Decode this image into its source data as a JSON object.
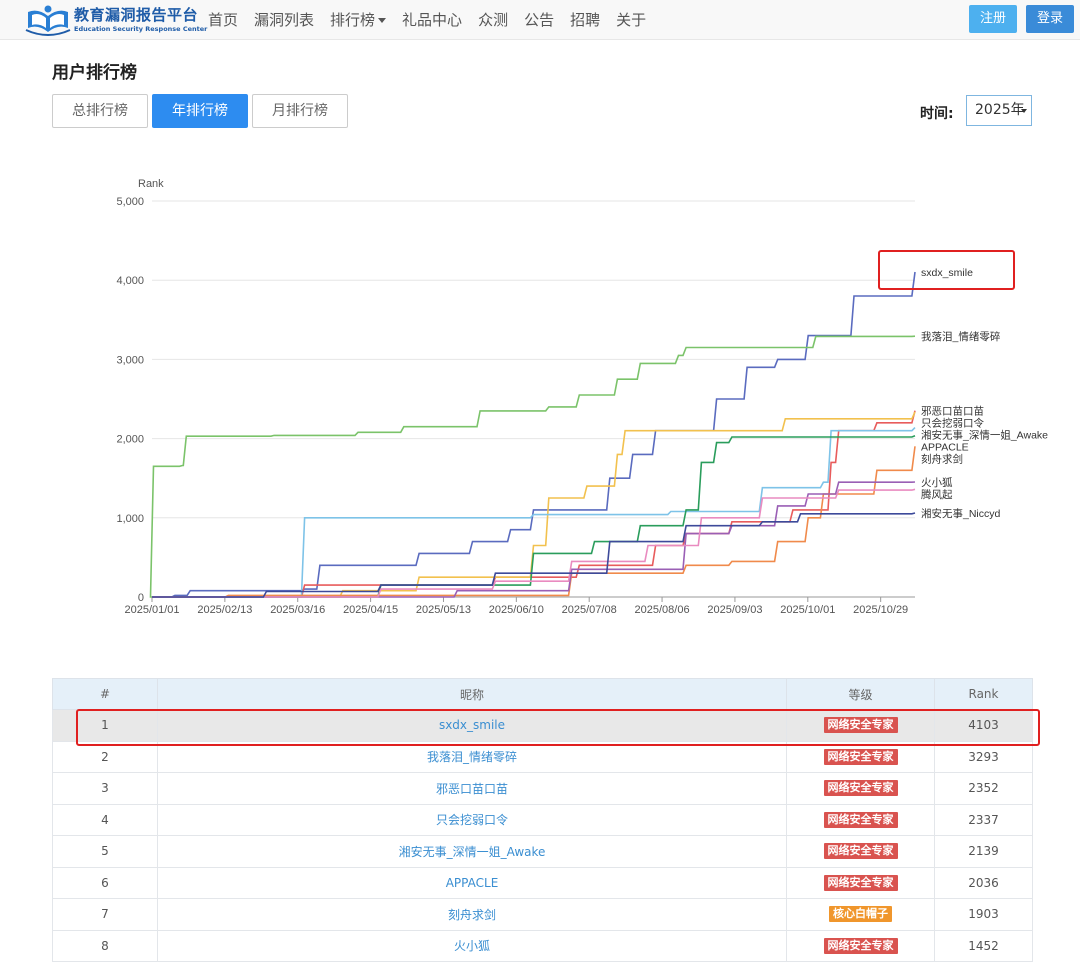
{
  "brand": {
    "name_cn": "教育漏洞报告平台",
    "name_en": "Education Security Response Center"
  },
  "nav": {
    "items": [
      "首页",
      "漏洞列表",
      "排行榜",
      "礼品中心",
      "众测",
      "公告",
      "招聘",
      "关于"
    ],
    "register": "注册",
    "login": "登录"
  },
  "page": {
    "title": "用户排行榜",
    "tabs": [
      "总排行榜",
      "年排行榜",
      "月排行榜"
    ],
    "active_tab": "年排行榜",
    "time_label": "时间:",
    "time_value": "2025年"
  },
  "chart_data": {
    "type": "line",
    "ylabel": "Rank",
    "ylim": [
      0,
      5000
    ],
    "yticks": [
      "0",
      "1,000",
      "2,000",
      "3,000",
      "4,000",
      "5,000"
    ],
    "xticks": [
      "2025/01/01",
      "2025/02/13",
      "2025/03/16",
      "2025/04/15",
      "2025/05/13",
      "2025/06/10",
      "2025/07/08",
      "2025/08/06",
      "2025/09/03",
      "2025/10/01",
      "2025/10/29"
    ],
    "grid": "horizontal",
    "series": [
      {
        "name": "sxdx_smile",
        "color": "#5a6bbf",
        "points": [
          [
            0,
            0
          ],
          [
            0.03,
            20
          ],
          [
            0.05,
            80
          ],
          [
            0.2,
            100
          ],
          [
            0.22,
            400
          ],
          [
            0.35,
            550
          ],
          [
            0.42,
            700
          ],
          [
            0.47,
            850
          ],
          [
            0.5,
            1100
          ],
          [
            0.6,
            1500
          ],
          [
            0.63,
            1800
          ],
          [
            0.66,
            2100
          ],
          [
            0.74,
            2500
          ],
          [
            0.78,
            2900
          ],
          [
            0.82,
            3000
          ],
          [
            0.86,
            3300
          ],
          [
            0.92,
            3800
          ],
          [
            1,
            4103
          ]
        ]
      },
      {
        "name": "我落泪_情绪零碎",
        "color": "#7bc36a",
        "points": [
          [
            0,
            0
          ],
          [
            0.002,
            1650
          ],
          [
            0.04,
            1660
          ],
          [
            0.045,
            2030
          ],
          [
            0.16,
            2040
          ],
          [
            0.27,
            2080
          ],
          [
            0.33,
            2150
          ],
          [
            0.43,
            2350
          ],
          [
            0.52,
            2400
          ],
          [
            0.56,
            2550
          ],
          [
            0.61,
            2750
          ],
          [
            0.64,
            2950
          ],
          [
            0.69,
            3050
          ],
          [
            0.7,
            3150
          ],
          [
            0.84,
            3150
          ],
          [
            0.87,
            3290
          ],
          [
            1,
            3293
          ]
        ]
      },
      {
        "name": "邪恶口苗口苗",
        "color": "#e85c5c",
        "points": [
          [
            0,
            0
          ],
          [
            0.2,
            150
          ],
          [
            0.45,
            250
          ],
          [
            0.56,
            400
          ],
          [
            0.66,
            650
          ],
          [
            0.7,
            800
          ],
          [
            0.76,
            950
          ],
          [
            0.84,
            1100
          ],
          [
            0.89,
            1700
          ],
          [
            0.9,
            2100
          ],
          [
            0.95,
            2200
          ],
          [
            1,
            2352
          ]
        ]
      },
      {
        "name": "只会挖弱口令",
        "color": "#f2c14e",
        "points": [
          [
            0,
            0
          ],
          [
            0.25,
            80
          ],
          [
            0.35,
            250
          ],
          [
            0.5,
            650
          ],
          [
            0.52,
            1250
          ],
          [
            0.57,
            1400
          ],
          [
            0.61,
            1800
          ],
          [
            0.62,
            2100
          ],
          [
            0.83,
            2250
          ],
          [
            1,
            2337
          ]
        ]
      },
      {
        "name": "湘安无事_深情一姐_Awake",
        "color": "#7ec3e8",
        "points": [
          [
            0,
            0
          ],
          [
            0.2,
            20
          ],
          [
            0.2,
            1000
          ],
          [
            0.5,
            1040
          ],
          [
            0.68,
            1080
          ],
          [
            0.8,
            1380
          ],
          [
            0.88,
            1450
          ],
          [
            0.89,
            2100
          ],
          [
            1,
            2139
          ]
        ]
      },
      {
        "name": "APPACLE",
        "color": "#2a9d5c",
        "points": [
          [
            0,
            0
          ],
          [
            0.3,
            150
          ],
          [
            0.5,
            550
          ],
          [
            0.58,
            700
          ],
          [
            0.64,
            900
          ],
          [
            0.7,
            1100
          ],
          [
            0.72,
            1700
          ],
          [
            0.74,
            1950
          ],
          [
            0.76,
            2020
          ],
          [
            1,
            2036
          ]
        ]
      },
      {
        "name": "刻舟求剑",
        "color": "#f08a4b",
        "points": [
          [
            0,
            0
          ],
          [
            0.1,
            20
          ],
          [
            0.55,
            300
          ],
          [
            0.7,
            400
          ],
          [
            0.76,
            450
          ],
          [
            0.82,
            700
          ],
          [
            0.86,
            1000
          ],
          [
            0.88,
            1300
          ],
          [
            0.95,
            1600
          ],
          [
            1,
            1903
          ]
        ]
      },
      {
        "name": "火小狐",
        "color": "#9a5fb5",
        "points": [
          [
            0,
            0
          ],
          [
            0.4,
            80
          ],
          [
            0.55,
            350
          ],
          [
            0.7,
            800
          ],
          [
            0.76,
            900
          ],
          [
            0.82,
            1150
          ],
          [
            0.86,
            1300
          ],
          [
            0.9,
            1450
          ],
          [
            1,
            1452
          ]
        ]
      },
      {
        "name": "腾风起",
        "color": "#e98bc0",
        "points": [
          [
            0,
            0
          ],
          [
            0.3,
            100
          ],
          [
            0.45,
            200
          ],
          [
            0.55,
            450
          ],
          [
            0.65,
            650
          ],
          [
            0.72,
            1000
          ],
          [
            0.8,
            1250
          ],
          [
            0.9,
            1350
          ],
          [
            1,
            1360
          ]
        ]
      },
      {
        "name": "湘安无事_Niccyd",
        "color": "#3d4a9a",
        "points": [
          [
            0,
            0
          ],
          [
            0.15,
            70
          ],
          [
            0.3,
            150
          ],
          [
            0.45,
            300
          ],
          [
            0.6,
            700
          ],
          [
            0.7,
            900
          ],
          [
            0.8,
            950
          ],
          [
            0.85,
            1050
          ],
          [
            1,
            1060
          ]
        ]
      }
    ]
  },
  "table": {
    "headers": [
      "#",
      "昵称",
      "等级",
      "Rank"
    ],
    "rows": [
      {
        "rank_no": "1",
        "nickname": "sxdx_smile",
        "level": "网络安全专家",
        "level_color": "#d9534f",
        "score": "4103"
      },
      {
        "rank_no": "2",
        "nickname": "我落泪_情绪零碎",
        "level": "网络安全专家",
        "level_color": "#d9534f",
        "score": "3293"
      },
      {
        "rank_no": "3",
        "nickname": "邪恶口苗口苗",
        "level": "网络安全专家",
        "level_color": "#d9534f",
        "score": "2352"
      },
      {
        "rank_no": "4",
        "nickname": "只会挖弱口令",
        "level": "网络安全专家",
        "level_color": "#d9534f",
        "score": "2337"
      },
      {
        "rank_no": "5",
        "nickname": "湘安无事_深情一姐_Awake",
        "level": "网络安全专家",
        "level_color": "#d9534f",
        "score": "2139"
      },
      {
        "rank_no": "6",
        "nickname": "APPACLE",
        "level": "网络安全专家",
        "level_color": "#d9534f",
        "score": "2036"
      },
      {
        "rank_no": "7",
        "nickname": "刻舟求剑",
        "level": "核心白帽子",
        "level_color": "#f0962c",
        "score": "1903"
      },
      {
        "rank_no": "8",
        "nickname": "火小狐",
        "level": "网络安全专家",
        "level_color": "#d9534f",
        "score": "1452"
      }
    ]
  }
}
